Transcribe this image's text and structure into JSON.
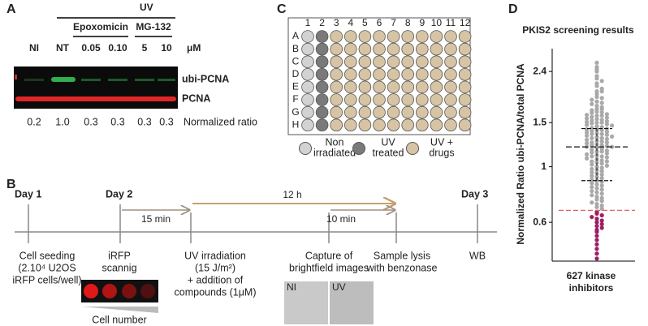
{
  "panel_a": {
    "letter": "A",
    "uv": "UV",
    "epoxomicin": "Epoxomicin",
    "mg132": "MG-132",
    "lanes": [
      "NI",
      "NT",
      "0.05",
      "0.10",
      "5",
      "10"
    ],
    "unit": "μM",
    "bands": [
      "ubi-PCNA",
      "PCNA"
    ],
    "ratios": [
      "0.2",
      "1.0",
      "0.3",
      "0.3",
      "0.3",
      "0.3"
    ],
    "ratio_label": "Normalized ratio"
  },
  "panel_b": {
    "letter": "B",
    "days": [
      "Day 1",
      "Day 2",
      "Day 3"
    ],
    "intervals": [
      "15 min",
      "12 h",
      "10 min"
    ],
    "steps": [
      [
        "Cell seeding",
        "(2.10⁴ U2OS",
        "iRFP cells/well)"
      ],
      [
        "iRFP",
        "scannig"
      ],
      [
        "UV irradiation",
        "(15 J/m²)",
        "+ addition of",
        "compounds (1μM)"
      ],
      [
        "Capture of",
        "brightfield images"
      ],
      [
        "Sample lysis",
        "with benzonase"
      ],
      [
        "WB"
      ]
    ],
    "cell_number": "Cell number",
    "micrographs": [
      "NI",
      "UV"
    ]
  },
  "panel_c": {
    "letter": "C",
    "columns": [
      1,
      2,
      3,
      4,
      5,
      6,
      7,
      8,
      9,
      10,
      11,
      12
    ],
    "rows": [
      "A",
      "B",
      "C",
      "D",
      "E",
      "F",
      "G",
      "H"
    ],
    "legend": [
      [
        "Non",
        "irradiated"
      ],
      [
        "UV",
        "treated"
      ],
      [
        "UV +",
        "drugs"
      ]
    ]
  },
  "chart_data": {
    "type": "swarm",
    "letter": "D",
    "title": "PKIS2 screening results",
    "ylabel": "Normalized Ratio ubi-PCNA/total PCNA",
    "xlabel": [
      "627 kinase",
      "inhibitors"
    ],
    "log_y": true,
    "ylim": [
      0.42,
      2.96
    ],
    "yticks": [
      0.6,
      1,
      1.5,
      2.4
    ],
    "color": "#a9a9a9",
    "highlight_color": "#9c1f63",
    "threshold": 0.67,
    "threshold_color": "#e06464",
    "mean_line": 1.2,
    "sd_lines": [
      1.42,
      0.88
    ],
    "values": [
      2.6,
      2.5,
      2.45,
      2.4,
      2.3,
      2.25,
      2.2,
      2.15,
      2.1,
      2.05,
      2.0,
      2.0,
      1.95,
      1.9,
      1.88,
      1.85,
      1.82,
      1.8,
      1.78,
      1.75,
      1.73,
      1.7,
      1.7,
      1.68,
      1.66,
      1.65,
      1.64,
      1.62,
      1.61,
      1.6,
      1.6,
      1.58,
      1.57,
      1.56,
      1.55,
      1.54,
      1.53,
      1.52,
      1.51,
      1.5,
      1.5,
      1.49,
      1.48,
      1.47,
      1.46,
      1.45,
      1.44,
      1.43,
      1.42,
      1.41,
      1.4,
      1.4,
      1.39,
      1.38,
      1.37,
      1.36,
      1.35,
      1.35,
      1.34,
      1.33,
      1.32,
      1.31,
      1.3,
      1.3,
      1.29,
      1.28,
      1.27,
      1.26,
      1.25,
      1.25,
      1.24,
      1.23,
      1.22,
      1.22,
      1.21,
      1.2,
      1.2,
      1.19,
      1.18,
      1.17,
      1.16,
      1.15,
      1.15,
      1.14,
      1.13,
      1.12,
      1.11,
      1.1,
      1.1,
      1.09,
      1.08,
      1.07,
      1.06,
      1.05,
      1.05,
      1.04,
      1.03,
      1.02,
      1.01,
      1.0,
      0.99,
      0.98,
      0.97,
      0.96,
      0.95,
      0.94,
      0.93,
      0.92,
      0.91,
      0.9,
      0.89,
      0.88,
      0.87,
      0.86,
      0.85,
      0.84,
      0.83,
      0.82,
      0.81,
      0.8,
      0.79,
      0.78,
      0.77,
      0.76,
      0.75,
      0.74,
      0.73,
      0.72,
      0.71,
      0.7,
      0.69,
      0.68,
      0.66,
      0.65,
      0.64,
      0.63,
      0.62,
      0.61,
      0.6,
      0.59,
      0.58,
      0.57,
      0.56,
      0.55,
      0.53,
      0.51,
      0.49,
      0.47,
      0.45,
      0.43
    ]
  }
}
